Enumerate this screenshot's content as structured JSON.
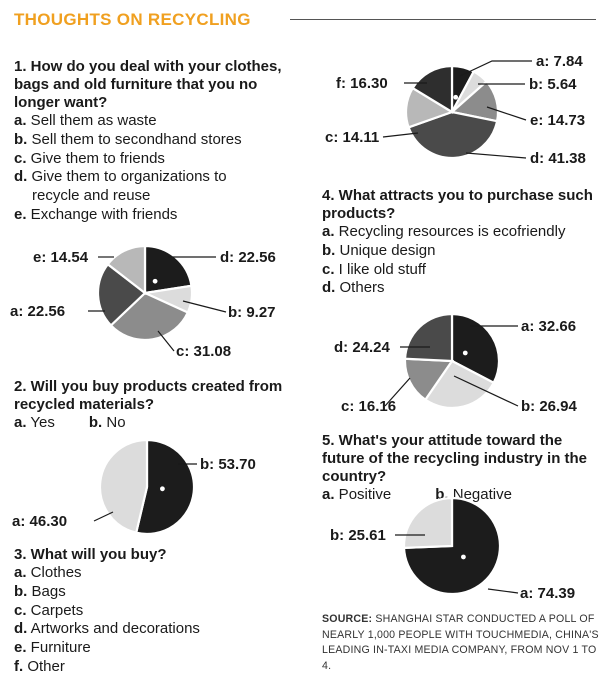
{
  "header": {
    "title": "THOUGHTS ON RECYCLING"
  },
  "questions": [
    {
      "title": "1. How do you deal with your clothes, bags and old furniture that you no longer want?",
      "options": [
        {
          "key": "a.",
          "text": " Sell them as waste"
        },
        {
          "key": "b.",
          "text": " Sell them to secondhand stores"
        },
        {
          "key": "c.",
          "text": " Give them to friends"
        },
        {
          "key": "d.",
          "text": " Give them to organizations to"
        },
        {
          "key": "",
          "text": "recycle and reuse"
        },
        {
          "key": "e.",
          "text": " Exchange with friends"
        }
      ]
    },
    {
      "title": "2. Will you buy products created from recycled materials?",
      "options": [
        {
          "key": "a.",
          "text": " Yes"
        },
        {
          "key": "b.",
          "text": " No"
        }
      ]
    },
    {
      "title": "3. What will you buy?",
      "options": [
        {
          "key": "a.",
          "text": " Clothes"
        },
        {
          "key": "b.",
          "text": " Bags"
        },
        {
          "key": "c.",
          "text": " Carpets"
        },
        {
          "key": "d.",
          "text": " Artworks and decorations"
        },
        {
          "key": "e.",
          "text": " Furniture"
        },
        {
          "key": "f.",
          "text": " Other"
        }
      ]
    },
    {
      "title": "4. What attracts you to purchase such products?",
      "options": [
        {
          "key": "a.",
          "text": " Recycling resources is ecofriendly"
        },
        {
          "key": "b.",
          "text": " Unique design"
        },
        {
          "key": "c.",
          "text": " I like old stuff"
        },
        {
          "key": "d.",
          "text": " Others"
        }
      ]
    },
    {
      "title": "5. What's your attitude toward the future of the recycling industry in the country?",
      "options": [
        {
          "key": "a.",
          "text": " Positive"
        },
        {
          "key": "b.",
          "text": " Negative"
        }
      ]
    }
  ],
  "source": {
    "label": "SOURCE:",
    "text": " SHANGHAI STAR CONDUCTED A POLL OF NEARLY 1,000 PEOPLE WITH TOUCHMEDIA, CHINA'S LEADING IN-TAXI MEDIA COMPANY, FROM NOV 1 TO 4."
  },
  "colors": {
    "black": "#1c1c1c",
    "dark": "#4a4a4a",
    "mid": "#8c8c8c",
    "light": "#b8b8b8",
    "pale": "#dcdcdc",
    "title": "#f0a020"
  },
  "chart_data": [
    {
      "type": "pie",
      "question": 1,
      "slices": [
        {
          "label": "d",
          "value": 22.56,
          "display": "d: 22.56",
          "color": "#1c1c1c"
        },
        {
          "label": "b",
          "value": 9.27,
          "display": "b: 9.27",
          "color": "#dcdcdc"
        },
        {
          "label": "c",
          "value": 31.08,
          "display": "c: 31.08",
          "color": "#8c8c8c"
        },
        {
          "label": "a",
          "value": 22.56,
          "display": "a: 22.56",
          "color": "#4a4a4a"
        },
        {
          "label": "e",
          "value": 14.54,
          "display": "e: 14.54",
          "color": "#b8b8b8"
        }
      ]
    },
    {
      "type": "pie",
      "question": 2,
      "slices": [
        {
          "label": "b",
          "value": 53.7,
          "display": "b: 53.70",
          "color": "#1c1c1c"
        },
        {
          "label": "a",
          "value": 46.3,
          "display": "a: 46.30",
          "color": "#dcdcdc"
        }
      ]
    },
    {
      "type": "pie",
      "question": 3,
      "slices": [
        {
          "label": "a",
          "value": 7.84,
          "display": "a: 7.84",
          "color": "#1c1c1c"
        },
        {
          "label": "b",
          "value": 5.64,
          "display": "b: 5.64",
          "color": "#dcdcdc"
        },
        {
          "label": "e",
          "value": 14.73,
          "display": "e: 14.73",
          "color": "#8c8c8c"
        },
        {
          "label": "d",
          "value": 41.38,
          "display": "d: 41.38",
          "color": "#4a4a4a"
        },
        {
          "label": "c",
          "value": 14.11,
          "display": "c: 14.11",
          "color": "#b8b8b8"
        },
        {
          "label": "f",
          "value": 16.3,
          "display": "f: 16.30",
          "color": "#2e2e2e"
        }
      ]
    },
    {
      "type": "pie",
      "question": 4,
      "slices": [
        {
          "label": "a",
          "value": 32.66,
          "display": "a: 32.66",
          "color": "#1c1c1c"
        },
        {
          "label": "b",
          "value": 26.94,
          "display": "b: 26.94",
          "color": "#dcdcdc"
        },
        {
          "label": "c",
          "value": 16.16,
          "display": "c: 16.16",
          "color": "#8c8c8c"
        },
        {
          "label": "d",
          "value": 24.24,
          "display": "d: 24.24",
          "color": "#4a4a4a"
        }
      ]
    },
    {
      "type": "pie",
      "question": 5,
      "slices": [
        {
          "label": "a",
          "value": 74.39,
          "display": "a: 74.39",
          "color": "#1c1c1c"
        },
        {
          "label": "b",
          "value": 25.61,
          "display": "b: 25.61",
          "color": "#dcdcdc"
        }
      ]
    }
  ]
}
